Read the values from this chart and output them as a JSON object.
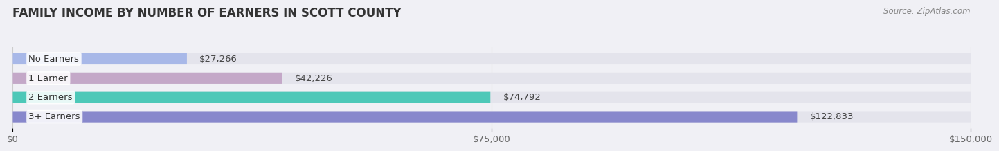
{
  "title": "FAMILY INCOME BY NUMBER OF EARNERS IN SCOTT COUNTY",
  "source": "Source: ZipAtlas.com",
  "categories": [
    "No Earners",
    "1 Earner",
    "2 Earners",
    "3+ Earners"
  ],
  "values": [
    27266,
    42226,
    74792,
    122833
  ],
  "bar_colors": [
    "#a8b8e8",
    "#c4a8c8",
    "#4dc8b8",
    "#8888cc"
  ],
  "bar_labels": [
    "$27,266",
    "$42,226",
    "$74,792",
    "$122,833"
  ],
  "xlim": [
    0,
    150000
  ],
  "xticks": [
    0,
    75000,
    150000
  ],
  "xtick_labels": [
    "$0",
    "$75,000",
    "$150,000"
  ],
  "background_color": "#f0f0f5",
  "bar_bg_color": "#e4e4ec",
  "title_fontsize": 12,
  "label_fontsize": 9.5,
  "tick_fontsize": 9.5,
  "source_fontsize": 8.5,
  "bar_height": 0.58,
  "label_color_outside": "#444444",
  "label_color_white": "#ffffff"
}
